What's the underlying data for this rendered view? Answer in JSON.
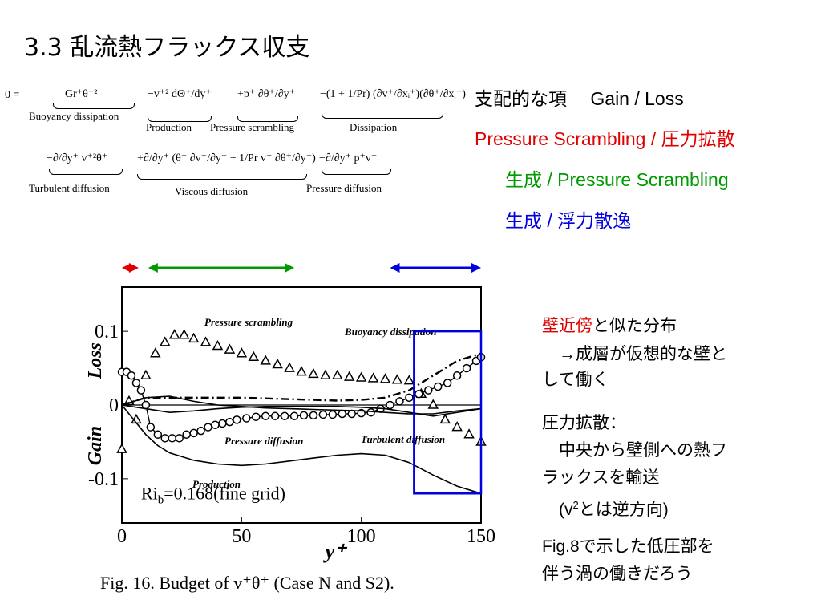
{
  "title": "3.3 乱流熱フラックス収支",
  "equation": {
    "lhs": "0 =",
    "row1": [
      {
        "expr": "Gr⁺θ⁺²",
        "label": "Buoyancy dissipation"
      },
      {
        "expr": "−v⁺² dΘ⁺/dy⁺",
        "label": "Production"
      },
      {
        "expr": "+p⁺ ∂θ⁺/∂y⁺",
        "label": "Pressure scrambling"
      },
      {
        "expr": "−(1 + 1/Pr) (∂v⁺/∂xᵢ⁺)(∂θ⁺/∂xᵢ⁺)",
        "label": "Dissipation"
      }
    ],
    "row2": [
      {
        "expr": "−∂/∂y⁺ v⁺²θ⁺",
        "label": "Turbulent diffusion"
      },
      {
        "expr": "+∂/∂y⁺ (θ⁺ ∂v⁺/∂y⁺ + 1/Pr v⁺ ∂θ⁺/∂y⁺)",
        "label": "Viscous diffusion"
      },
      {
        "expr": "−∂/∂y⁺ p⁺v⁺",
        "label": "Pressure diffusion"
      }
    ]
  },
  "legend_text": {
    "line1": "支配的な項　 Gain  /  Loss",
    "line2": "Pressure Scrambling / 圧力拡散",
    "line3": "生成 / Pressure Scrambling",
    "line4": "生成 / 浮力散逸",
    "color_red": "#e00000",
    "color_green": "#009a00",
    "color_blue": "#0000e0"
  },
  "notes": {
    "n1_red": "壁近傍",
    "n1_rest": "と似た分布",
    "n2": "　→成層が仮想的な壁と",
    "n3": "して働く",
    "n4": "圧力拡散：",
    "n5": "　中央から壁側への熱フ",
    "n6": "ラックスを輸送",
    "n7_pre": "　(v",
    "n7_sup": "2",
    "n7_post": "とは逆方向)",
    "n8": "Fig.8で示した低圧部を",
    "n9": "伴う渦の働きだろう"
  },
  "caption": "Fig. 16. Budget of v⁺θ⁺ (Case N and S2).",
  "chart_data": {
    "type": "line",
    "xlabel": "y⁺",
    "ylabel_top": "Loss",
    "ylabel_bottom": "Gain",
    "xlim": [
      0,
      150
    ],
    "ylim": [
      -0.16,
      0.16
    ],
    "xticks": [
      "0",
      "50",
      "100",
      "150"
    ],
    "yticks": [
      "0.1",
      "0",
      "-0.1"
    ],
    "annotation": "Riₕ=0.168(fine grid)",
    "annotation_sub": "b",
    "annotation_prefix": "Ri",
    "annotation_suffix": "=0.168(fine grid)",
    "series": [
      {
        "name": "Pressure scrambling",
        "marker": "triangle",
        "x": [
          0,
          3,
          6,
          10,
          14,
          18,
          22,
          26,
          30,
          35,
          40,
          45,
          50,
          55,
          60,
          65,
          70,
          75,
          80,
          85,
          90,
          95,
          100,
          105,
          110,
          115,
          120,
          125,
          130,
          135,
          140,
          145,
          150
        ],
        "y": [
          -0.06,
          0.005,
          -0.02,
          0.04,
          0.07,
          0.085,
          0.095,
          0.095,
          0.09,
          0.085,
          0.08,
          0.075,
          0.07,
          0.065,
          0.06,
          0.055,
          0.05,
          0.045,
          0.042,
          0.04,
          0.04,
          0.038,
          0.037,
          0.036,
          0.035,
          0.034,
          0.033,
          0.015,
          0.0,
          -0.02,
          -0.03,
          -0.04,
          -0.05
        ]
      },
      {
        "name": "Buoyancy dissipation",
        "marker": "dashdot",
        "x": [
          0,
          5,
          10,
          20,
          30,
          40,
          50,
          60,
          70,
          80,
          90,
          100,
          110,
          120,
          130,
          140,
          150
        ],
        "y": [
          0.0,
          0.005,
          0.01,
          0.01,
          0.01,
          0.01,
          0.01,
          0.009,
          0.008,
          0.007,
          0.006,
          0.007,
          0.01,
          0.02,
          0.04,
          0.06,
          0.07
        ]
      },
      {
        "name": "Pressure diffusion",
        "marker": "circle",
        "x": [
          0,
          2,
          4,
          6,
          8,
          10,
          12,
          15,
          18,
          21,
          24,
          27,
          30,
          33,
          36,
          39,
          42,
          45,
          48,
          52,
          56,
          60,
          64,
          68,
          72,
          76,
          80,
          84,
          88,
          92,
          96,
          100,
          104,
          108,
          112,
          116,
          120,
          124,
          128,
          132,
          136,
          140,
          144,
          148,
          150
        ],
        "y": [
          0.045,
          0.045,
          0.04,
          0.03,
          0.02,
          0.0,
          -0.03,
          -0.04,
          -0.045,
          -0.045,
          -0.045,
          -0.04,
          -0.038,
          -0.035,
          -0.03,
          -0.027,
          -0.025,
          -0.023,
          -0.02,
          -0.018,
          -0.016,
          -0.015,
          -0.015,
          -0.015,
          -0.015,
          -0.014,
          -0.014,
          -0.013,
          -0.013,
          -0.012,
          -0.012,
          -0.011,
          -0.01,
          -0.005,
          0.0,
          0.005,
          0.01,
          0.015,
          0.02,
          0.025,
          0.03,
          0.04,
          0.05,
          0.06,
          0.065
        ]
      },
      {
        "name": "Turbulent diffusion",
        "marker": "solid",
        "x": [
          0,
          10,
          20,
          30,
          40,
          50,
          60,
          70,
          80,
          90,
          100,
          110,
          120,
          130,
          140,
          150
        ],
        "y": [
          0.0,
          -0.005,
          -0.01,
          -0.008,
          -0.005,
          -0.003,
          -0.002,
          -0.002,
          -0.002,
          -0.002,
          -0.003,
          -0.005,
          -0.01,
          -0.015,
          -0.01,
          -0.005
        ]
      },
      {
        "name": "Production",
        "marker": "solid",
        "x": [
          0,
          5,
          10,
          15,
          20,
          30,
          40,
          50,
          60,
          70,
          80,
          90,
          100,
          110,
          120,
          130,
          140,
          150
        ],
        "y": [
          0.0,
          -0.02,
          -0.04,
          -0.055,
          -0.065,
          -0.075,
          -0.08,
          -0.082,
          -0.08,
          -0.076,
          -0.072,
          -0.068,
          -0.066,
          -0.068,
          -0.078,
          -0.095,
          -0.11,
          -0.12
        ]
      },
      {
        "name": "Viscous diffusion",
        "marker": "solid",
        "x": [
          0,
          5,
          10,
          20,
          30,
          40,
          50,
          60,
          70,
          80,
          90,
          100,
          110,
          120,
          130,
          140,
          150
        ],
        "y": [
          0.0,
          0.005,
          0.01,
          0.012,
          0.005,
          0.0,
          -0.002,
          -0.004,
          -0.005,
          -0.006,
          -0.007,
          -0.008,
          -0.01,
          -0.012,
          -0.012,
          -0.008,
          -0.005
        ]
      }
    ],
    "range_arrows": [
      {
        "color": "red",
        "from": 0,
        "to": 7
      },
      {
        "color": "green",
        "from": 11,
        "to": 72
      },
      {
        "color": "blue",
        "from": 112,
        "to": 150
      }
    ],
    "highlight_box": {
      "from": 122,
      "to": 150,
      "ylim": [
        -0.12,
        0.1
      ],
      "color": "#0000e0"
    }
  }
}
